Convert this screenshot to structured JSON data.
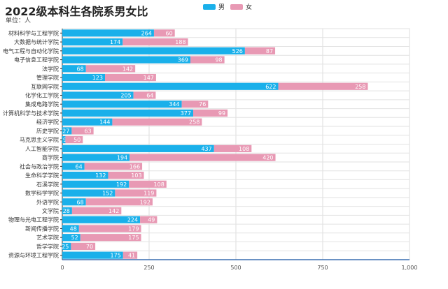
{
  "chart_data": {
    "type": "bar",
    "orientation": "horizontal",
    "stacked": true,
    "title": "2022级本科生各院系男女比",
    "subtitle": "单位：人",
    "categories": [
      "材料科学与工程学院",
      "大数据与统计学院",
      "电气工程与自动化学院",
      "电子信息工程学院",
      "法学院",
      "管理学院",
      "互联网学院",
      "化学化工学院",
      "集成电路学院",
      "计算机科学与技术学院",
      "经济学院",
      "历史学院",
      "马克思主义学院",
      "人工智能学院",
      "商学院",
      "社会与政治学院",
      "生命科学学院",
      "石溪学院",
      "数学科学学院",
      "外语学院",
      "文学院",
      "物理与光电工程学院",
      "新闻传播学院",
      "艺术学院",
      "哲学学院",
      "资源与环境工程学院"
    ],
    "series": [
      {
        "name": "男",
        "color": "#1ab0ea",
        "values": [
          264,
          174,
          526,
          369,
          68,
          123,
          622,
          205,
          344,
          377,
          144,
          27,
          9,
          437,
          194,
          64,
          132,
          192,
          152,
          68,
          28,
          224,
          48,
          52,
          25,
          175
        ]
      },
      {
        "name": "女",
        "color": "#e899b4",
        "values": [
          60,
          188,
          87,
          98,
          142,
          147,
          258,
          64,
          76,
          99,
          258,
          63,
          50,
          108,
          420,
          166,
          103,
          108,
          119,
          192,
          142,
          49,
          179,
          175,
          70,
          41
        ]
      }
    ],
    "xlim": [
      0,
      1000
    ],
    "xticks": [
      "0",
      "250",
      "500",
      "750",
      "1,000"
    ],
    "grid": true,
    "legend": "top-center"
  }
}
